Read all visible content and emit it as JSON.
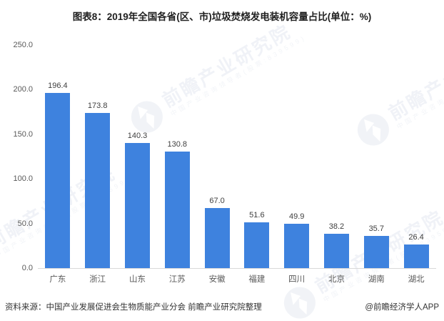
{
  "title": "图表8：2019年全国各省(区、市)垃圾焚烧发电装机容量占比(单位：%)",
  "chart_data": {
    "type": "bar",
    "title": "图表8：2019年全国各省(区、市)垃圾焚烧发电装机容量占比(单位：%)",
    "categories": [
      "广东",
      "浙江",
      "山东",
      "江苏",
      "安徽",
      "福建",
      "四川",
      "北京",
      "湖南",
      "湖北"
    ],
    "values": [
      196.4,
      173.8,
      140.3,
      130.8,
      67.0,
      51.6,
      49.9,
      38.2,
      35.7,
      26.4
    ],
    "value_labels": [
      "196.4",
      "173.8",
      "140.3",
      "130.8",
      "67.0",
      "51.6",
      "49.9",
      "38.2",
      "35.7",
      "26.4"
    ],
    "xlabel": "",
    "ylabel": "",
    "ylim": [
      0,
      250
    ],
    "yticks": [
      "250.0",
      "200.0",
      "150.0",
      "100.0",
      "50.0",
      "0.0"
    ],
    "grid": false,
    "legend_position": "none",
    "bar_color": "#3E82DE"
  },
  "footer": {
    "source": "资料来源：中国产业发展促进会生物质能产业分会 前瞻产业研究院整理",
    "credit": "@前瞻经济学人APP"
  },
  "watermark": {
    "brand": "前瞻产业研究院",
    "tagline": "中国产业咨询领导者(股票:839599)"
  },
  "colors": {
    "bar": "#3E82DE",
    "axis_line": "#d9d9d9",
    "tick_text": "#595959",
    "title_text": "#1f1f1f",
    "watermark": "#e7ebf2"
  }
}
